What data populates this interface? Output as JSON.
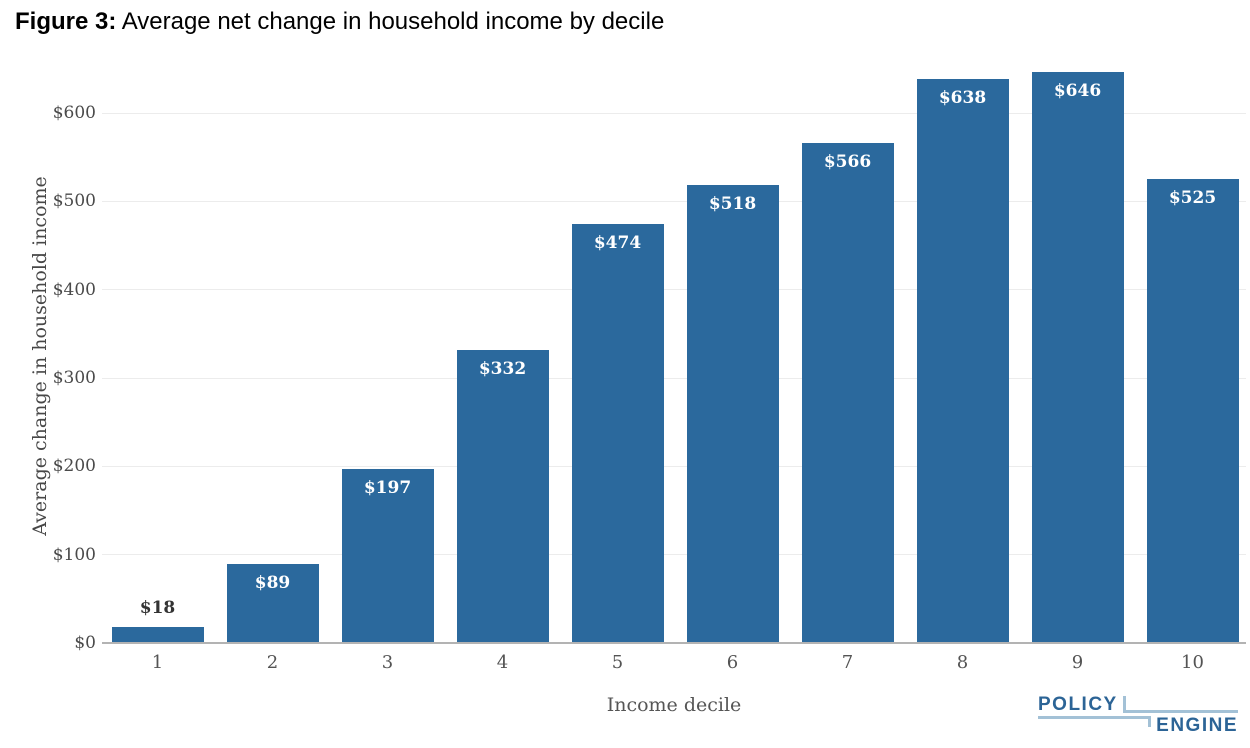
{
  "title": {
    "prefix": "Figure 3:",
    "rest": " Average net change in household income by decile"
  },
  "chart_data": {
    "type": "bar",
    "title": "Figure 3: Average net change in household income by decile",
    "categories": [
      "1",
      "2",
      "3",
      "4",
      "5",
      "6",
      "7",
      "8",
      "9",
      "10"
    ],
    "values": [
      18,
      89,
      197,
      332,
      474,
      518,
      566,
      638,
      646,
      525
    ],
    "bar_labels": [
      "$18",
      "$89",
      "$197",
      "$332",
      "$474",
      "$518",
      "$566",
      "$638",
      "$646",
      "$525"
    ],
    "xlabel": "Income decile",
    "ylabel": "Average change in household income",
    "ylim": [
      0,
      600
    ],
    "ytick_step": 100,
    "ytick_labels": [
      "$0",
      "$100",
      "$200",
      "$300",
      "$400",
      "$500",
      "$600"
    ],
    "grid": true,
    "legend_position": "none",
    "bar_color": "#2B699D",
    "inside_label_color": "#FFFFFF",
    "outside_label_color": "#333333",
    "axis_text_color": "#4A4A4A",
    "gridline_color": "#ECECEC",
    "baseline_color": "#B3B3B3"
  },
  "logo": {
    "line1": "POLICY",
    "line2": "ENGINE",
    "text_color": "#2C6496",
    "accent_color": "#A3C1D6"
  }
}
